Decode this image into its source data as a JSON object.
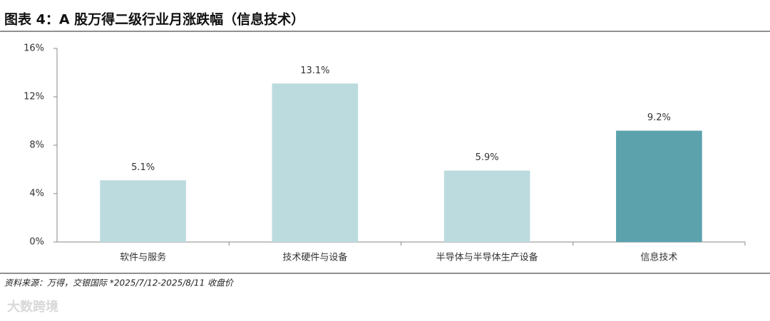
{
  "chart_data": {
    "type": "bar",
    "title": "图表 4：A 股万得二级行业月涨跌幅（信息技术）",
    "categories": [
      "软件与服务",
      "技术硬件与设备",
      "半导体与半导体生产设备",
      "信息技术"
    ],
    "values": [
      5.1,
      13.1,
      5.9,
      9.2
    ],
    "value_labels": [
      "5.1%",
      "13.1%",
      "5.9%",
      "9.2%"
    ],
    "colors": [
      "#bcdbdf",
      "#bcdbdf",
      "#bcdbdf",
      "#5ba2ad"
    ],
    "ylim": [
      0,
      16
    ],
    "yticks": [
      {
        "value": 0,
        "label": "0%"
      },
      {
        "value": 4,
        "label": "4%"
      },
      {
        "value": 8,
        "label": "8%"
      },
      {
        "value": 12,
        "label": "12%"
      },
      {
        "value": 16,
        "label": "16%"
      }
    ],
    "source": "资料来源：万得，交银国际    *2025/7/12-2025/8/11 收盘价",
    "watermark": "大数跨境"
  }
}
